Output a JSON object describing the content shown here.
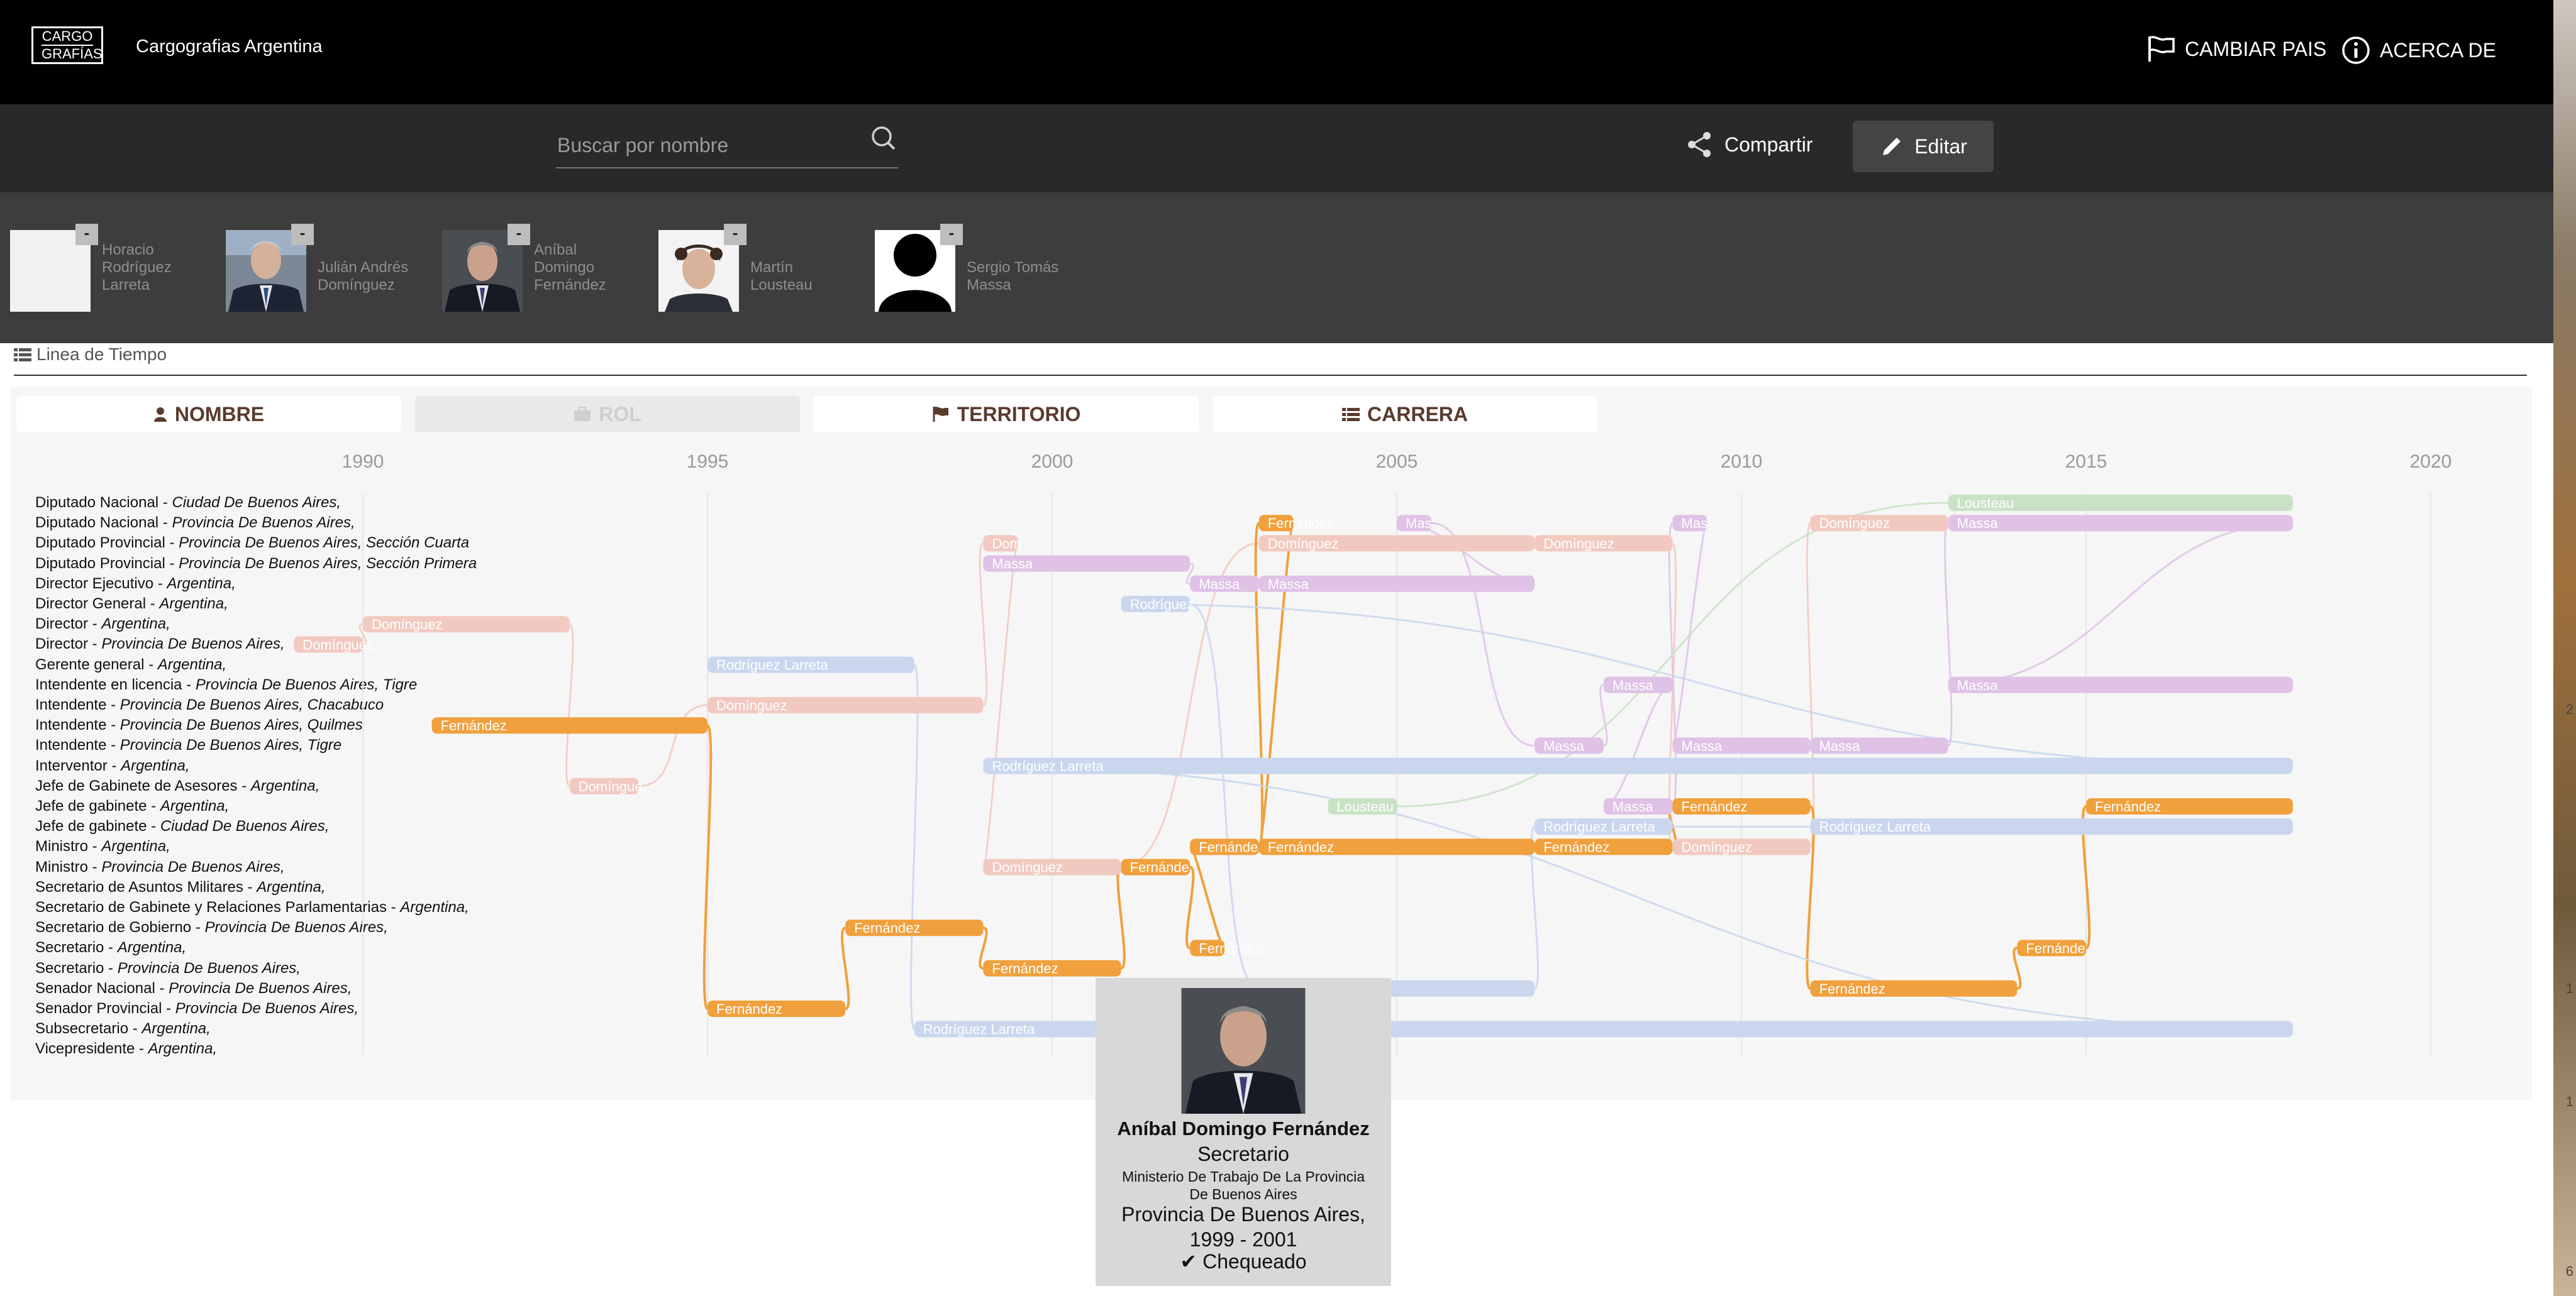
{
  "header": {
    "logo_line1": "CARGO",
    "logo_line2": "GRAFÍAS",
    "title": "Cargografias Argentina",
    "change_country": "CAMBIAR PAIS",
    "about": "ACERCA DE"
  },
  "toolbar": {
    "search_placeholder": "Buscar por nombre",
    "share_label": "Compartir",
    "edit_label": "Editar"
  },
  "people": [
    {
      "name": "Horacio Rodríguez Larreta",
      "photo": "blank",
      "remove": "-"
    },
    {
      "name": "Julián Andrés Domínguez",
      "photo": "man-suit",
      "remove": "-"
    },
    {
      "name": "Aníbal Domingo Fernández",
      "photo": "man-suit",
      "remove": "-"
    },
    {
      "name": "Martín Lousteau",
      "photo": "man-curly",
      "remove": "-"
    },
    {
      "name": "Sergio Tomás Massa",
      "photo": "silhouette",
      "remove": "-"
    }
  ],
  "timeline_section": {
    "title": "Linea de Tiempo",
    "tabs": [
      {
        "label": "NOMBRE",
        "icon": "person-icon",
        "enabled": true
      },
      {
        "label": "ROL",
        "icon": "briefcase-icon",
        "enabled": false
      },
      {
        "label": "TERRITORIO",
        "icon": "flag-icon",
        "enabled": true
      },
      {
        "label": "CARRERA",
        "icon": "list-icon",
        "enabled": true
      }
    ],
    "years": [
      "1990",
      "1995",
      "2000",
      "2005",
      "2010",
      "2015",
      "2020"
    ],
    "rows": [
      {
        "role": "Diputado Nacional - ",
        "place": "Ciudad De Buenos Aires,"
      },
      {
        "role": "Diputado Nacional - ",
        "place": "Provincia De Buenos Aires,"
      },
      {
        "role": "Diputado Provincial - ",
        "place": "Provincia De Buenos Aires, Sección Cuarta"
      },
      {
        "role": "Diputado Provincial - ",
        "place": "Provincia De Buenos Aires, Sección Primera"
      },
      {
        "role": "Director Ejecutivo - ",
        "place": "Argentina,"
      },
      {
        "role": "Director General - ",
        "place": "Argentina,"
      },
      {
        "role": "Director - ",
        "place": "Argentina,"
      },
      {
        "role": "Director - ",
        "place": "Provincia De Buenos Aires,"
      },
      {
        "role": "Gerente general - ",
        "place": "Argentina,"
      },
      {
        "role": "Intendente en licencia - ",
        "place": "Provincia De Buenos Aires, Tigre"
      },
      {
        "role": "Intendente - ",
        "place": "Provincia De Buenos Aires, Chacabuco"
      },
      {
        "role": "Intendente - ",
        "place": "Provincia De Buenos Aires, Quilmes"
      },
      {
        "role": "Intendente - ",
        "place": "Provincia De Buenos Aires, Tigre"
      },
      {
        "role": "Interventor - ",
        "place": "Argentina,"
      },
      {
        "role": "Jefe de Gabinete de Asesores - ",
        "place": "Argentina,"
      },
      {
        "role": "Jefe de gabinete - ",
        "place": "Argentina,"
      },
      {
        "role": "Jefe de gabinete - ",
        "place": "Ciudad De Buenos Aires,"
      },
      {
        "role": "Ministro - ",
        "place": "Argentina,"
      },
      {
        "role": "Ministro - ",
        "place": "Provincia De Buenos Aires,"
      },
      {
        "role": "Secretario de Asuntos Militares - ",
        "place": "Argentina,"
      },
      {
        "role": "Secretario de Gabinete y Relaciones Parlamentarias - ",
        "place": "Argentina,"
      },
      {
        "role": "Secretario de Gobierno - ",
        "place": "Provincia De Buenos Aires,"
      },
      {
        "role": "Secretario - ",
        "place": "Argentina,"
      },
      {
        "role": "Secretario - ",
        "place": "Provincia De Buenos Aires,"
      },
      {
        "role": "Senador Nacional - ",
        "place": "Provincia De Buenos Aires,"
      },
      {
        "role": "Senador Provincial - ",
        "place": "Provincia De Buenos Aires,"
      },
      {
        "role": "Subsecretario - ",
        "place": "Argentina,"
      },
      {
        "role": "Vicepresidente - ",
        "place": "Argentina,"
      }
    ],
    "colors": {
      "Fernández": "#f0a03c",
      "Domínguez": "#f2c9c0",
      "Massa": "#dfc2e6",
      "Rodríguez Larreta": "#c9d6ee",
      "Lousteau": "#c9e2c6"
    },
    "bars": [
      {
        "person": "Domínguez",
        "label": "Domínguez",
        "row": 6,
        "start": 1990,
        "end": 1993
      },
      {
        "person": "Domínguez",
        "label": "Domínguez",
        "row": 7,
        "start": 1989,
        "end": 1990
      },
      {
        "person": "Fernández",
        "label": "Fernández",
        "row": 11,
        "start": 1991,
        "end": 1995
      },
      {
        "person": "Domínguez",
        "label": "Domíngue",
        "row": 14,
        "start": 1993,
        "end": 1994
      },
      {
        "person": "Rodríguez Larreta",
        "label": "Rodríguez Larreta",
        "row": 8,
        "start": 1995,
        "end": 1998
      },
      {
        "person": "Domínguez",
        "label": "Domínguez",
        "row": 10,
        "start": 1995,
        "end": 1999
      },
      {
        "person": "Fernández",
        "label": "Fernández",
        "row": 25,
        "start": 1995,
        "end": 1997
      },
      {
        "person": "Fernández",
        "label": "Fernández",
        "row": 21,
        "start": 1997,
        "end": 1999
      },
      {
        "person": "Fernández",
        "label": "Fernández",
        "row": 23,
        "start": 1999,
        "end": 2001
      },
      {
        "person": "Rodríguez Larreta",
        "label": "Rodríguez Larreta",
        "row": 26,
        "start": 1998,
        "end": 2018
      },
      {
        "person": "Domínguez",
        "label": "Dom",
        "row": 2,
        "start": 1999,
        "end": 1999.5
      },
      {
        "person": "Massa",
        "label": "Massa",
        "row": 3,
        "start": 1999,
        "end": 2002
      },
      {
        "person": "Rodríguez Larreta",
        "label": "Rodríguez Larreta",
        "row": 13,
        "start": 1999,
        "end": 2018
      },
      {
        "person": "Domínguez",
        "label": "Domínguez",
        "row": 18,
        "start": 1999,
        "end": 2001
      },
      {
        "person": "Fernández",
        "label": "Fernánde",
        "row": 18,
        "start": 2001,
        "end": 2002
      },
      {
        "person": "Rodríguez Larreta",
        "label": "Rodríguez",
        "row": 5,
        "start": 2001,
        "end": 2002
      },
      {
        "person": "Massa",
        "label": "Massa",
        "row": 4,
        "start": 2002,
        "end": 2003
      },
      {
        "person": "Fernández",
        "label": "Fernández",
        "row": 22,
        "start": 2002,
        "end": 2002.5
      },
      {
        "person": "Fernández",
        "label": "Fernánde",
        "row": 17,
        "start": 2002,
        "end": 2003
      },
      {
        "person": "Fernández",
        "label": "Fernández",
        "row": 1,
        "start": 2003,
        "end": 2003.5
      },
      {
        "person": "Domínguez",
        "label": "Domínguez",
        "row": 2,
        "start": 2003,
        "end": 2007
      },
      {
        "person": "Massa",
        "label": "Massa",
        "row": 4,
        "start": 2003,
        "end": 2007
      },
      {
        "person": "Fernández",
        "label": "Fernández",
        "row": 17,
        "start": 2003,
        "end": 2007
      },
      {
        "person": "Lousteau",
        "label": "Lousteau",
        "row": 15,
        "start": 2004,
        "end": 2005
      },
      {
        "person": "Massa",
        "label": "Mas",
        "row": 1,
        "start": 2005,
        "end": 2005.5
      },
      {
        "person": "Rodríguez Larreta",
        "label": "Rodríguez Larreta",
        "row": 24,
        "start": 2003,
        "end": 2007
      },
      {
        "person": "Domínguez",
        "label": "Domínguez",
        "row": 2,
        "start": 2007,
        "end": 2009
      },
      {
        "person": "Massa",
        "label": "Massa",
        "row": 12,
        "start": 2007,
        "end": 2008
      },
      {
        "person": "Fernández",
        "label": "Fernández",
        "row": 17,
        "start": 2007,
        "end": 2009
      },
      {
        "person": "Rodríguez Larreta",
        "label": "Rodríguez Larreta",
        "row": 16,
        "start": 2007,
        "end": 2009
      },
      {
        "person": "Massa",
        "label": "Massa",
        "row": 9,
        "start": 2008,
        "end": 2009
      },
      {
        "person": "Massa",
        "label": "Massa",
        "row": 15,
        "start": 2008,
        "end": 2009
      },
      {
        "person": "Massa",
        "label": "Mas",
        "row": 1,
        "start": 2009,
        "end": 2009.5
      },
      {
        "person": "Massa",
        "label": "Massa",
        "row": 12,
        "start": 2009,
        "end": 2011
      },
      {
        "person": "Fernández",
        "label": "Fernández",
        "row": 15,
        "start": 2009,
        "end": 2011
      },
      {
        "person": "Domínguez",
        "label": "Domínguez",
        "row": 17,
        "start": 2009,
        "end": 2011
      },
      {
        "person": "Domínguez",
        "label": "Domínguez",
        "row": 1,
        "start": 2011,
        "end": 2013
      },
      {
        "person": "Massa",
        "label": "Massa",
        "row": 12,
        "start": 2011,
        "end": 2013
      },
      {
        "person": "Rodríguez Larreta",
        "label": "Rodríguez Larreta",
        "row": 16,
        "start": 2011,
        "end": 2018
      },
      {
        "person": "Fernández",
        "label": "Fernández",
        "row": 24,
        "start": 2011,
        "end": 2014
      },
      {
        "person": "Lousteau",
        "label": "Lousteau",
        "row": 0,
        "start": 2013,
        "end": 2018
      },
      {
        "person": "Massa",
        "label": "Massa",
        "row": 1,
        "start": 2013,
        "end": 2018
      },
      {
        "person": "Massa",
        "label": "Massa",
        "row": 9,
        "start": 2013,
        "end": 2018
      },
      {
        "person": "Fernández",
        "label": "Fernánde",
        "row": 22,
        "start": 2014,
        "end": 2015
      },
      {
        "person": "Fernández",
        "label": "Fernández",
        "row": 15,
        "start": 2015,
        "end": 2018
      }
    ]
  },
  "tooltip": {
    "name": "Aníbal Domingo Fernández",
    "role": "Secretario",
    "institution": "Ministerio De Trabajo De La Provincia De Buenos Aires",
    "territory": "Provincia De Buenos Aires,",
    "period": "1999 - 2001",
    "status": "Chequeado"
  },
  "scroll_ticks": [
    "2",
    "1",
    "1",
    "6"
  ]
}
